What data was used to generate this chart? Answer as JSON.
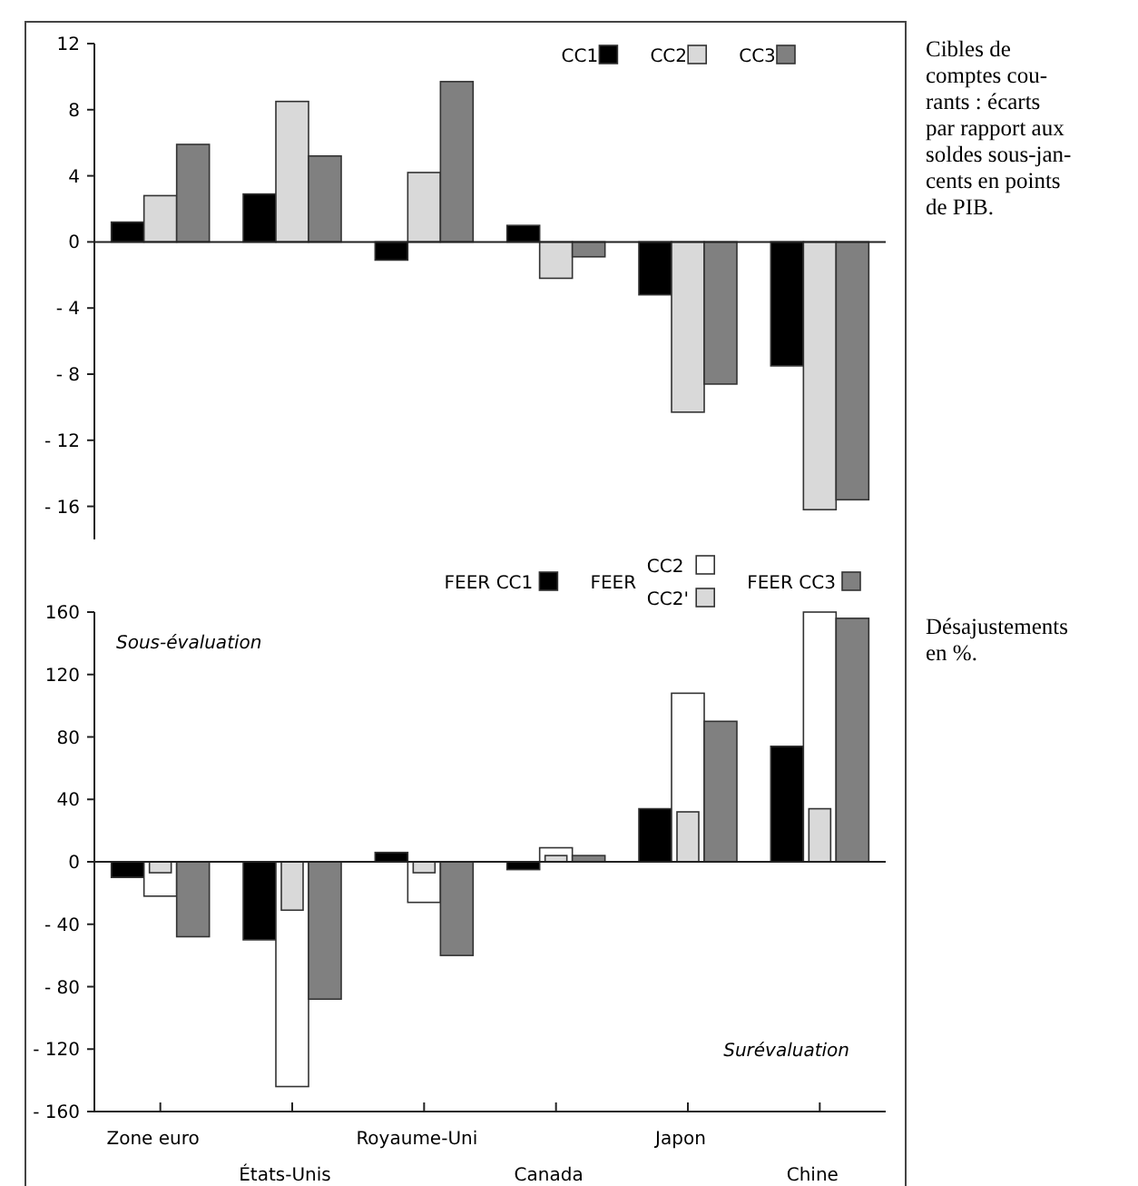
{
  "chart_data": [
    {
      "type": "bar",
      "categories": [
        null,
        null,
        null,
        null,
        null,
        null
      ],
      "series": [
        {
          "name": "CC1",
          "color": "#000000",
          "values": [
            1.2,
            2.9,
            -1.1,
            1.0,
            -3.2,
            -7.5
          ]
        },
        {
          "name": "CC2",
          "color": "#d9d9d9",
          "values": [
            2.8,
            8.5,
            4.2,
            -2.2,
            -10.3,
            -16.2
          ]
        },
        {
          "name": "CC3",
          "color": "#808080",
          "values": [
            5.9,
            5.2,
            9.7,
            -0.9,
            -8.6,
            -15.6
          ]
        }
      ],
      "ylim": [
        -18,
        12
      ],
      "yticks": [
        12,
        8,
        4,
        0,
        {
          "value": -4,
          "label": "- 4"
        },
        {
          "value": -8,
          "label": "- 8"
        },
        {
          "value": -12,
          "label": "- 12"
        },
        {
          "value": -16,
          "label": "- 16"
        }
      ],
      "tick_labels": "y",
      "legend": "top right",
      "annotations": [
        "Cibles de\ncomptes cou-\nrants : écarts\npar rapport aux\nsoldes sous-jan-\ncents en points\nde PIB."
      ]
    },
    {
      "type": "bar",
      "categories": [
        "Zone euro",
        "États-Unis",
        "Royaume-Uni",
        "Canada",
        "Japon",
        "Chine"
      ],
      "series": [
        {
          "name": "FEER CC1",
          "color": "#000000",
          "values": [
            -10,
            -50,
            6,
            -5,
            34,
            74
          ]
        },
        {
          "name": "CC2",
          "color": "#ffffff",
          "values": [
            -22,
            -144,
            -26,
            9,
            108,
            160
          ]
        },
        {
          "name": "CC2'",
          "color": "#d9d9d9",
          "values": [
            -7,
            -31,
            -7,
            4,
            32,
            34
          ]
        },
        {
          "name": "FEER CC3",
          "color": "#808080",
          "values": [
            -48,
            -88,
            -60,
            4,
            90,
            156
          ]
        }
      ],
      "ylim": [
        -160,
        160
      ],
      "yticks": [
        160,
        120,
        80,
        40,
        0,
        {
          "value": -40,
          "label": "- 40"
        },
        {
          "value": -80,
          "label": "- 80"
        },
        {
          "value": -120,
          "label": "- 120"
        },
        {
          "value": -160,
          "label": "- 160"
        }
      ],
      "legend": "top right",
      "annotations": [
        "Désajustements\nen %.",
        "Sous-évaluation",
        "Surévaluation",
        "FEER"
      ]
    }
  ]
}
